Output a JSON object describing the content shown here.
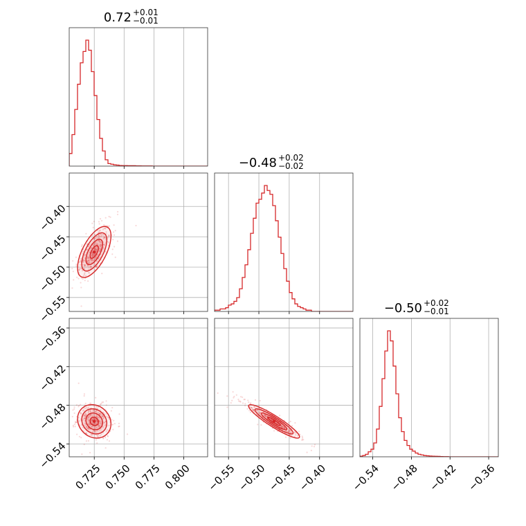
{
  "chart_data": {
    "type": "corner",
    "color": "#d62728",
    "parameters": [
      {
        "title_main": "0.72",
        "title_plus": "+0.01",
        "title_minus": "−0.01",
        "median": 0.725,
        "sigma": 0.007
      },
      {
        "title_main": "−0.48",
        "title_plus": "+0.02",
        "title_minus": "−0.02",
        "median": -0.475,
        "sigma": 0.021
      },
      {
        "title_main": "−0.50",
        "title_plus": "+0.02",
        "title_minus": "−0.01",
        "median": -0.505,
        "sigma": 0.013
      }
    ],
    "axis_ranges": [
      [
        0.704,
        0.82
      ],
      [
        -0.573,
        -0.345
      ],
      [
        -0.56,
        -0.345
      ]
    ],
    "ticks": [
      {
        "values": [
          0.725,
          0.75,
          0.775,
          0.8
        ],
        "labels": [
          "0.725",
          "0.750",
          "0.775",
          "0.800"
        ]
      },
      {
        "values": [
          -0.55,
          -0.5,
          -0.45,
          -0.4
        ],
        "labels": [
          "−0.55",
          "−0.50",
          "−0.45",
          "−0.40"
        ]
      },
      {
        "values": [
          -0.54,
          -0.48,
          -0.42,
          -0.36
        ],
        "labels": [
          "−0.54",
          "−0.48",
          "−0.42",
          "−0.36"
        ]
      }
    ],
    "histograms": [
      {
        "bin_start": 0.704,
        "bin_width": 0.00232,
        "counts": [
          0.1,
          0.25,
          0.45,
          0.65,
          0.82,
          0.91,
          1.0,
          0.92,
          0.75,
          0.56,
          0.37,
          0.22,
          0.12,
          0.05,
          0.02,
          0.015,
          0.01,
          0.008,
          0.005,
          0.004,
          0.004,
          0.003,
          0.003,
          0.003,
          0.002,
          0.002,
          0.001,
          0.001,
          0.001,
          0.001,
          0,
          0,
          0,
          0,
          0,
          0,
          0,
          0,
          0,
          0,
          0,
          0,
          0,
          0,
          0,
          0,
          0,
          0,
          0,
          0
        ]
      },
      {
        "bin_start": -0.573,
        "bin_width": 0.00456,
        "counts": [
          0.01,
          0.01,
          0.02,
          0.02,
          0.03,
          0.05,
          0.06,
          0.08,
          0.11,
          0.18,
          0.27,
          0.37,
          0.49,
          0.62,
          0.74,
          0.86,
          0.89,
          0.94,
          1.0,
          0.96,
          0.93,
          0.84,
          0.72,
          0.59,
          0.46,
          0.34,
          0.24,
          0.15,
          0.1,
          0.06,
          0.04,
          0.03,
          0.02,
          0.01,
          0.01,
          0,
          0,
          0,
          0,
          0,
          0,
          0,
          0,
          0,
          0,
          0,
          0,
          0,
          0,
          0
        ]
      },
      {
        "bin_start": -0.56,
        "bin_width": 0.0043,
        "counts": [
          0.005,
          0.01,
          0.02,
          0.04,
          0.06,
          0.11,
          0.22,
          0.4,
          0.62,
          0.84,
          1.0,
          0.92,
          0.72,
          0.5,
          0.31,
          0.2,
          0.13,
          0.09,
          0.06,
          0.045,
          0.03,
          0.02,
          0.015,
          0.01,
          0.008,
          0.006,
          0.005,
          0.004,
          0.003,
          0.002,
          0.001,
          0.001,
          0,
          0,
          0,
          0,
          0,
          0,
          0,
          0,
          0,
          0,
          0,
          0,
          0,
          0,
          0,
          0,
          0,
          0
        ]
      }
    ],
    "correlations": {
      "p0_p1": 0.62,
      "p0_p2": -0.15,
      "p1_p2": -0.92
    },
    "contour_levels": [
      "0.5-sigma",
      "1-sigma",
      "1.5-sigma",
      "2-sigma"
    ],
    "grid": true,
    "xlabel": "",
    "ylabel": ""
  }
}
